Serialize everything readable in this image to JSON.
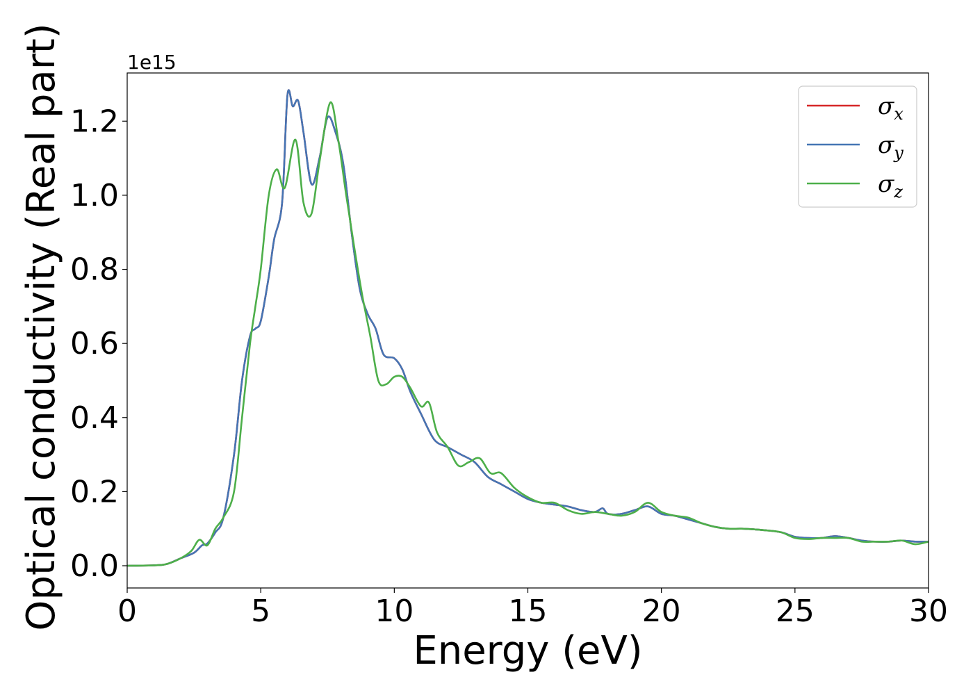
{
  "chart_data": {
    "type": "line",
    "xlabel": "Energy (eV)",
    "ylabel": "Optical conductivity (Real part)",
    "y_offset_label": "1e15",
    "xlim": [
      0,
      30
    ],
    "ylim": [
      -0.06,
      1.33
    ],
    "xticks": [
      0,
      5,
      10,
      15,
      20,
      25,
      30
    ],
    "yticks": [
      0.0,
      0.2,
      0.4,
      0.6,
      0.8,
      1.0,
      1.2
    ],
    "xtick_labels": [
      "0",
      "5",
      "10",
      "15",
      "20",
      "25",
      "30"
    ],
    "ytick_labels": [
      "0.0",
      "0.2",
      "0.4",
      "0.6",
      "0.8",
      "1.0",
      "1.2"
    ],
    "grid": false,
    "legend_position": "top-right",
    "series": [
      {
        "name_base": "σ",
        "name_sub": "x",
        "color": "#d62728",
        "x": [
          0,
          1,
          1.5,
          2,
          2.5,
          2.8,
          3,
          3.3,
          3.6,
          4,
          4.3,
          4.6,
          4.8,
          5,
          5.3,
          5.5,
          5.8,
          6,
          6.2,
          6.4,
          6.6,
          6.9,
          7.2,
          7.5,
          7.8,
          8.1,
          8.4,
          8.7,
          9,
          9.3,
          9.6,
          10,
          10.3,
          10.6,
          11,
          11.5,
          12,
          12.5,
          13,
          13.5,
          14,
          14.5,
          15,
          15.5,
          16,
          16.5,
          17,
          17.5,
          17.8,
          18,
          18.5,
          19,
          19.5,
          20,
          20.5,
          21,
          21.5,
          22,
          22.5,
          23,
          23.5,
          24,
          24.5,
          25,
          25.5,
          26,
          26.5,
          27,
          27.5,
          28,
          28.5,
          29,
          29.5,
          30
        ],
        "y": [
          0,
          0.001,
          0.005,
          0.02,
          0.035,
          0.055,
          0.06,
          0.09,
          0.13,
          0.3,
          0.5,
          0.62,
          0.64,
          0.66,
          0.78,
          0.88,
          0.98,
          1.27,
          1.24,
          1.255,
          1.17,
          1.03,
          1.1,
          1.21,
          1.17,
          1.08,
          0.9,
          0.75,
          0.68,
          0.64,
          0.57,
          0.56,
          0.53,
          0.47,
          0.41,
          0.34,
          0.32,
          0.3,
          0.28,
          0.24,
          0.22,
          0.2,
          0.18,
          0.17,
          0.165,
          0.16,
          0.15,
          0.145,
          0.155,
          0.14,
          0.14,
          0.15,
          0.16,
          0.14,
          0.135,
          0.125,
          0.115,
          0.105,
          0.1,
          0.1,
          0.098,
          0.095,
          0.09,
          0.078,
          0.075,
          0.075,
          0.08,
          0.075,
          0.068,
          0.065,
          0.065,
          0.068,
          0.065,
          0.065
        ]
      },
      {
        "name_base": "σ",
        "name_sub": "y",
        "color": "#4575b4",
        "x": [
          0,
          1,
          1.5,
          2,
          2.5,
          2.8,
          3,
          3.3,
          3.6,
          4,
          4.3,
          4.6,
          4.8,
          5,
          5.3,
          5.5,
          5.8,
          6,
          6.2,
          6.4,
          6.6,
          6.9,
          7.2,
          7.5,
          7.8,
          8.1,
          8.4,
          8.7,
          9,
          9.3,
          9.6,
          10,
          10.3,
          10.6,
          11,
          11.5,
          12,
          12.5,
          13,
          13.5,
          14,
          14.5,
          15,
          15.5,
          16,
          16.5,
          17,
          17.5,
          17.8,
          18,
          18.5,
          19,
          19.5,
          20,
          20.5,
          21,
          21.5,
          22,
          22.5,
          23,
          23.5,
          24,
          24.5,
          25,
          25.5,
          26,
          26.5,
          27,
          27.5,
          28,
          28.5,
          29,
          29.5,
          30
        ],
        "y": [
          0,
          0.001,
          0.005,
          0.02,
          0.035,
          0.055,
          0.06,
          0.09,
          0.13,
          0.3,
          0.5,
          0.62,
          0.64,
          0.66,
          0.78,
          0.88,
          0.98,
          1.27,
          1.24,
          1.255,
          1.17,
          1.03,
          1.1,
          1.21,
          1.17,
          1.08,
          0.9,
          0.75,
          0.68,
          0.64,
          0.57,
          0.56,
          0.53,
          0.47,
          0.41,
          0.34,
          0.32,
          0.3,
          0.28,
          0.24,
          0.22,
          0.2,
          0.18,
          0.17,
          0.165,
          0.16,
          0.15,
          0.145,
          0.155,
          0.14,
          0.14,
          0.15,
          0.16,
          0.14,
          0.135,
          0.125,
          0.115,
          0.105,
          0.1,
          0.1,
          0.098,
          0.095,
          0.09,
          0.078,
          0.075,
          0.075,
          0.08,
          0.075,
          0.068,
          0.065,
          0.065,
          0.068,
          0.065,
          0.065
        ]
      },
      {
        "name_base": "σ",
        "name_sub": "z",
        "color": "#4daf4a",
        "x": [
          0,
          1,
          1.5,
          2,
          2.4,
          2.7,
          3,
          3.3,
          3.6,
          4,
          4.3,
          4.6,
          4.8,
          5,
          5.3,
          5.6,
          5.9,
          6.3,
          6.6,
          6.9,
          7.2,
          7.6,
          7.9,
          8.2,
          8.5,
          8.8,
          9.1,
          9.4,
          9.7,
          10,
          10.3,
          10.6,
          11,
          11.3,
          11.6,
          12,
          12.4,
          12.8,
          13.2,
          13.6,
          14,
          14.5,
          15,
          15.5,
          16,
          16.5,
          17,
          17.5,
          18,
          18.5,
          19,
          19.5,
          20,
          20.5,
          21,
          21.5,
          22,
          22.5,
          23,
          23.5,
          24,
          24.5,
          25,
          25.5,
          26,
          26.5,
          27,
          27.5,
          28,
          28.5,
          29,
          29.5,
          30
        ],
        "y": [
          0,
          0.001,
          0.005,
          0.02,
          0.04,
          0.07,
          0.055,
          0.1,
          0.13,
          0.2,
          0.4,
          0.6,
          0.7,
          0.8,
          1.0,
          1.07,
          1.02,
          1.15,
          0.98,
          0.95,
          1.09,
          1.25,
          1.15,
          1.0,
          0.86,
          0.73,
          0.62,
          0.5,
          0.49,
          0.51,
          0.51,
          0.48,
          0.43,
          0.44,
          0.36,
          0.32,
          0.27,
          0.28,
          0.29,
          0.25,
          0.25,
          0.21,
          0.185,
          0.17,
          0.17,
          0.15,
          0.14,
          0.145,
          0.14,
          0.135,
          0.145,
          0.17,
          0.145,
          0.135,
          0.13,
          0.115,
          0.105,
          0.1,
          0.1,
          0.098,
          0.095,
          0.09,
          0.075,
          0.072,
          0.075,
          0.075,
          0.075,
          0.065,
          0.065,
          0.065,
          0.068,
          0.058,
          0.065
        ]
      }
    ]
  }
}
